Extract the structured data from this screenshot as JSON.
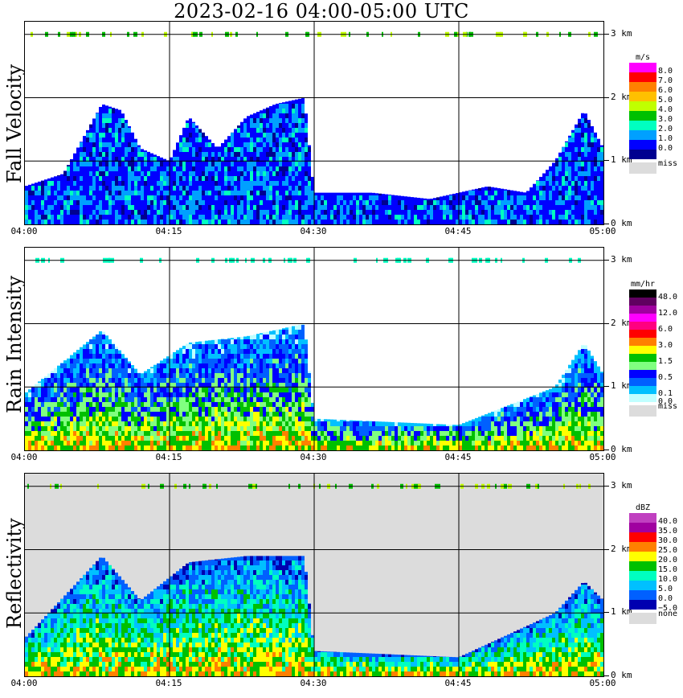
{
  "header": {
    "title": "2023-02-16   04:00-05:00 UTC"
  },
  "panels": [
    {
      "id": "fall",
      "label": "Fall Velocity",
      "legend_unit": "m/s",
      "legend_labels": [
        "8.0",
        "7.0",
        "6.0",
        "5.0",
        "4.0",
        "3.0",
        "2.0",
        "1.0",
        "0.0"
      ],
      "legend_colors": [
        "#ff00ff",
        "#ff0000",
        "#ff8000",
        "#ffc000",
        "#c0ff00",
        "#00c000",
        "#00ffc0",
        "#00a0ff",
        "#0000ff",
        "#000090"
      ],
      "missing_label": "miss",
      "background": "#ffffff"
    },
    {
      "id": "rain",
      "label": "Rain Intensity",
      "legend_unit": "mm/hr",
      "legend_labels": [
        "48.0",
        "",
        "12.0",
        "",
        "6.0",
        "",
        "3.0",
        "",
        "1.5",
        "",
        "0.5",
        "",
        "0.1",
        "0.0"
      ],
      "legend_colors": [
        "#000000",
        "#600060",
        "#a000a0",
        "#ff00ff",
        "#ff0080",
        "#ff0000",
        "#ff8000",
        "#ffff00",
        "#00c000",
        "#80ff80",
        "#0000ff",
        "#0060ff",
        "#00c0ff",
        "#c0ffff"
      ],
      "missing_label": "miss",
      "background": "#ffffff"
    },
    {
      "id": "refl",
      "label": "Reflectivity",
      "legend_unit": "dBZ",
      "legend_labels": [
        "40.0",
        "35.0",
        "30.0",
        "25.0",
        "20.0",
        "15.0",
        "10.0",
        "5.0",
        "0.0",
        "−5.0"
      ],
      "legend_colors": [
        "#c040c0",
        "#a000a0",
        "#ff0000",
        "#ff8000",
        "#ffff00",
        "#00c000",
        "#00ffc0",
        "#00c0ff",
        "#0060ff",
        "#0000b0"
      ],
      "missing_label": "none",
      "background": "#dcdcdc"
    }
  ],
  "chart_data": [
    {
      "type": "heatmap",
      "title": "Fall Velocity",
      "xlabel": "",
      "ylabel": "",
      "x_ticks": [
        "04:00",
        "04:15",
        "04:30",
        "04:45",
        "05:00"
      ],
      "y_ticks": [
        "0 km",
        "1 km",
        "2 km",
        "3 km"
      ],
      "xlim": [
        "04:00",
        "05:00"
      ],
      "ylim_km": [
        0,
        3.2
      ],
      "grid": true,
      "legend_placement": "right",
      "echo_tops_km": [
        {
          "t": "04:00",
          "top": 0.6
        },
        {
          "t": "04:04",
          "top": 0.8
        },
        {
          "t": "04:08",
          "top": 1.9
        },
        {
          "t": "04:10",
          "top": 1.8
        },
        {
          "t": "04:12",
          "top": 1.2
        },
        {
          "t": "04:15",
          "top": 1.0
        },
        {
          "t": "04:17",
          "top": 1.7
        },
        {
          "t": "04:20",
          "top": 1.2
        },
        {
          "t": "04:23",
          "top": 1.7
        },
        {
          "t": "04:26",
          "top": 1.9
        },
        {
          "t": "04:29",
          "top": 2.0
        },
        {
          "t": "04:30",
          "top": 0.5
        },
        {
          "t": "04:36",
          "top": 0.5
        },
        {
          "t": "04:42",
          "top": 0.4
        },
        {
          "t": "04:48",
          "top": 0.6
        },
        {
          "t": "04:52",
          "top": 0.5
        },
        {
          "t": "04:55",
          "top": 1.0
        },
        {
          "t": "04:58",
          "top": 1.8
        },
        {
          "t": "05:00",
          "top": 1.2
        }
      ]
    },
    {
      "type": "heatmap",
      "title": "Rain Intensity",
      "xlabel": "",
      "ylabel": "",
      "x_ticks": [
        "04:00",
        "04:15",
        "04:30",
        "04:45",
        "05:00"
      ],
      "y_ticks": [
        "0 km",
        "1 km",
        "2 km",
        "3 km"
      ],
      "xlim": [
        "04:00",
        "05:00"
      ],
      "ylim_km": [
        0,
        3.2
      ],
      "grid": true,
      "legend_placement": "right",
      "echo_tops_km": [
        {
          "t": "04:00",
          "top": 0.9
        },
        {
          "t": "04:08",
          "top": 1.9
        },
        {
          "t": "04:12",
          "top": 1.2
        },
        {
          "t": "04:17",
          "top": 1.7
        },
        {
          "t": "04:23",
          "top": 1.8
        },
        {
          "t": "04:29",
          "top": 2.0
        },
        {
          "t": "04:30",
          "top": 0.5
        },
        {
          "t": "04:45",
          "top": 0.4
        },
        {
          "t": "04:55",
          "top": 1.0
        },
        {
          "t": "04:58",
          "top": 1.7
        },
        {
          "t": "05:00",
          "top": 1.2
        }
      ]
    },
    {
      "type": "heatmap",
      "title": "Reflectivity",
      "xlabel": "",
      "ylabel": "",
      "x_ticks": [
        "04:00",
        "04:15",
        "04:30",
        "04:45",
        "05:00"
      ],
      "y_ticks": [
        "0 km",
        "1 km",
        "2 km",
        "3 km"
      ],
      "xlim": [
        "04:00",
        "05:00"
      ],
      "ylim_km": [
        0,
        3.2
      ],
      "grid": true,
      "legend_placement": "right",
      "echo_tops_km": [
        {
          "t": "04:00",
          "top": 0.6
        },
        {
          "t": "04:08",
          "top": 1.9
        },
        {
          "t": "04:12",
          "top": 1.2
        },
        {
          "t": "04:17",
          "top": 1.8
        },
        {
          "t": "04:23",
          "top": 1.9
        },
        {
          "t": "04:29",
          "top": 1.9
        },
        {
          "t": "04:30",
          "top": 0.4
        },
        {
          "t": "04:45",
          "top": 0.3
        },
        {
          "t": "04:55",
          "top": 1.0
        },
        {
          "t": "04:58",
          "top": 1.5
        },
        {
          "t": "05:00",
          "top": 1.2
        }
      ]
    }
  ]
}
